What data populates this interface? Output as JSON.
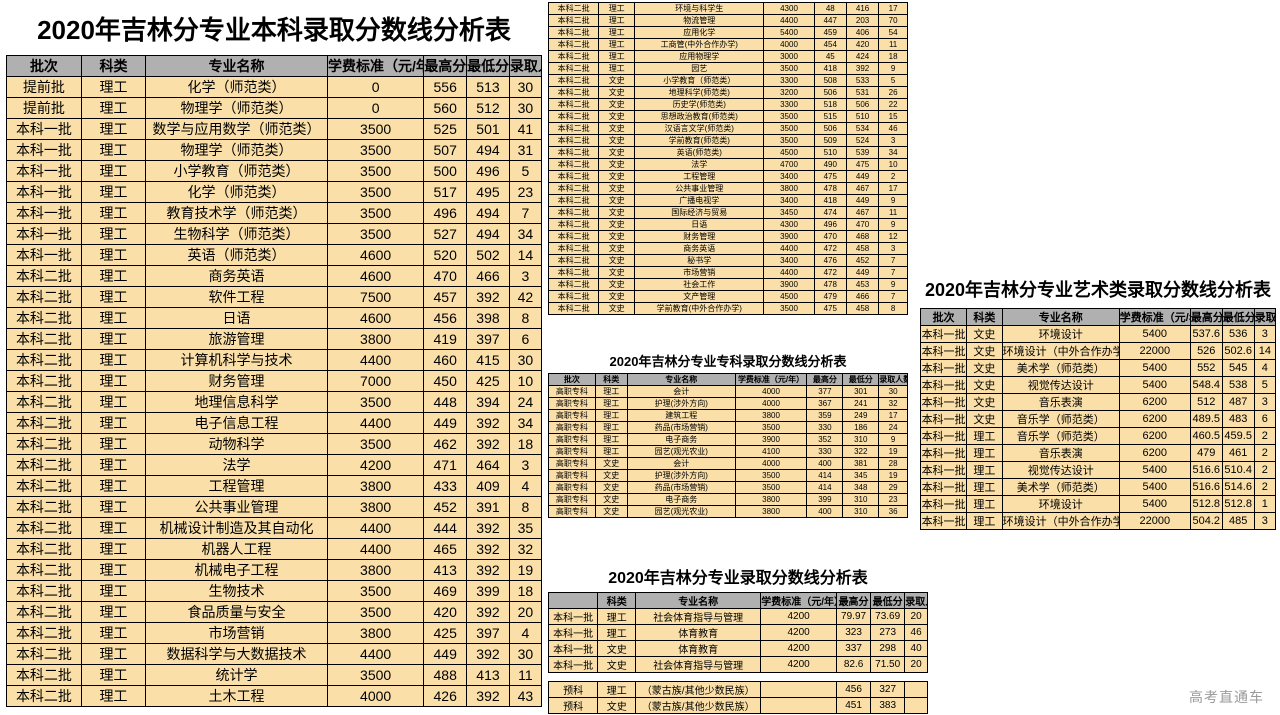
{
  "watermark": "高考直通车",
  "headers": {
    "batch": "批次",
    "category": "科类",
    "major": "专业名称",
    "fee": "学费标准（元/年）",
    "max": "最高分",
    "min": "最低分",
    "count": "录取人数"
  },
  "colors": {
    "header_bg": "#b0b0b0",
    "row_bg": "#fadfa8",
    "border": "#000000",
    "title": "#000000"
  },
  "table1": {
    "title": "2020年吉林分专业本科录取分数线分析表",
    "title_fontsize": 26,
    "cell_fontsize": 14,
    "rows": [
      [
        "提前批",
        "理工",
        "化学（师范类）",
        "0",
        "556",
        "513",
        "30"
      ],
      [
        "提前批",
        "理工",
        "物理学（师范类）",
        "0",
        "560",
        "512",
        "30"
      ],
      [
        "本科一批",
        "理工",
        "数学与应用数学（师范类）",
        "3500",
        "525",
        "501",
        "41"
      ],
      [
        "本科一批",
        "理工",
        "物理学（师范类）",
        "3500",
        "507",
        "494",
        "31"
      ],
      [
        "本科一批",
        "理工",
        "小学教育（师范类）",
        "3500",
        "500",
        "496",
        "5"
      ],
      [
        "本科一批",
        "理工",
        "化学（师范类）",
        "3500",
        "517",
        "495",
        "23"
      ],
      [
        "本科一批",
        "理工",
        "教育技术学（师范类）",
        "3500",
        "496",
        "494",
        "7"
      ],
      [
        "本科一批",
        "理工",
        "生物科学（师范类）",
        "3500",
        "527",
        "494",
        "34"
      ],
      [
        "本科一批",
        "理工",
        "英语（师范类）",
        "4600",
        "520",
        "502",
        "14"
      ],
      [
        "本科二批",
        "理工",
        "商务英语",
        "4600",
        "470",
        "466",
        "3"
      ],
      [
        "本科二批",
        "理工",
        "软件工程",
        "7500",
        "457",
        "392",
        "42"
      ],
      [
        "本科二批",
        "理工",
        "日语",
        "4600",
        "456",
        "398",
        "8"
      ],
      [
        "本科二批",
        "理工",
        "旅游管理",
        "3800",
        "419",
        "397",
        "6"
      ],
      [
        "本科二批",
        "理工",
        "计算机科学与技术",
        "4400",
        "460",
        "415",
        "30"
      ],
      [
        "本科二批",
        "理工",
        "财务管理",
        "7000",
        "450",
        "425",
        "10"
      ],
      [
        "本科二批",
        "理工",
        "地理信息科学",
        "3500",
        "448",
        "394",
        "24"
      ],
      [
        "本科二批",
        "理工",
        "电子信息工程",
        "4400",
        "449",
        "392",
        "34"
      ],
      [
        "本科二批",
        "理工",
        "动物科学",
        "3500",
        "462",
        "392",
        "18"
      ],
      [
        "本科二批",
        "理工",
        "法学",
        "4200",
        "471",
        "464",
        "3"
      ],
      [
        "本科二批",
        "理工",
        "工程管理",
        "3800",
        "433",
        "409",
        "4"
      ],
      [
        "本科二批",
        "理工",
        "公共事业管理",
        "3800",
        "452",
        "391",
        "8"
      ],
      [
        "本科二批",
        "理工",
        "机械设计制造及其自动化",
        "4400",
        "444",
        "392",
        "35"
      ],
      [
        "本科二批",
        "理工",
        "机器人工程",
        "4400",
        "465",
        "392",
        "32"
      ],
      [
        "本科二批",
        "理工",
        "机械电子工程",
        "3800",
        "413",
        "392",
        "19"
      ],
      [
        "本科二批",
        "理工",
        "生物技术",
        "3500",
        "469",
        "399",
        "18"
      ],
      [
        "本科二批",
        "理工",
        "食品质量与安全",
        "3500",
        "420",
        "392",
        "20"
      ],
      [
        "本科二批",
        "理工",
        "市场营销",
        "3800",
        "425",
        "397",
        "4"
      ],
      [
        "本科二批",
        "理工",
        "数据科学与大数据技术",
        "4400",
        "449",
        "392",
        "30"
      ],
      [
        "本科二批",
        "理工",
        "统计学",
        "3500",
        "488",
        "413",
        "11"
      ],
      [
        "本科二批",
        "理工",
        "土木工程",
        "4000",
        "426",
        "392",
        "43"
      ]
    ]
  },
  "table2": {
    "cell_fontsize": 8,
    "rows": [
      [
        "本科二批",
        "理工",
        "环境与科学生",
        "4300",
        "48",
        "416",
        "17"
      ],
      [
        "本科二批",
        "理工",
        "物流管理",
        "4400",
        "447",
        "203",
        "70"
      ],
      [
        "本科二批",
        "理工",
        "应用化学",
        "5400",
        "459",
        "406",
        "54"
      ],
      [
        "本科二批",
        "理工",
        "工商管(中外合作办学)",
        "4000",
        "454",
        "420",
        "11"
      ],
      [
        "本科二批",
        "理工",
        "应用物理学",
        "3000",
        "45",
        "424",
        "18"
      ],
      [
        "本科二批",
        "理工",
        "园艺",
        "3500",
        "418",
        "392",
        "9"
      ],
      [
        "本科二批",
        "文史",
        "小学教育（师范类）",
        "3300",
        "508",
        "533",
        "5"
      ],
      [
        "本科二批",
        "文史",
        "地理科学(师范类)",
        "3200",
        "506",
        "531",
        "26"
      ],
      [
        "本科二批",
        "文史",
        "历史学(师范类)",
        "3300",
        "518",
        "506",
        "22"
      ],
      [
        "本科二批",
        "文史",
        "思想政治教育(师范类)",
        "3500",
        "515",
        "510",
        "15"
      ],
      [
        "本科二批",
        "文史",
        "汉语言文学(师范类)",
        "3500",
        "506",
        "534",
        "46"
      ],
      [
        "本科二批",
        "文史",
        "学前教育(师范类)",
        "3500",
        "509",
        "524",
        "3"
      ],
      [
        "本科二批",
        "文史",
        "英语(师范类)",
        "4500",
        "510",
        "539",
        "34"
      ],
      [
        "本科二批",
        "文史",
        "法学",
        "4700",
        "490",
        "475",
        "10"
      ],
      [
        "本科二批",
        "文史",
        "工程管理",
        "3400",
        "475",
        "449",
        "2"
      ],
      [
        "本科二批",
        "文史",
        "公共事业管理",
        "3800",
        "478",
        "467",
        "17"
      ],
      [
        "本科二批",
        "文史",
        "广播电视学",
        "3400",
        "418",
        "449",
        "9"
      ],
      [
        "本科二批",
        "文史",
        "国际经济与贸易",
        "3450",
        "474",
        "467",
        "11"
      ],
      [
        "本科二批",
        "文史",
        "日语",
        "4300",
        "496",
        "470",
        "9"
      ],
      [
        "本科二批",
        "文史",
        "财务管理",
        "3900",
        "470",
        "468",
        "12"
      ],
      [
        "本科二批",
        "文史",
        "商务英语",
        "4400",
        "472",
        "458",
        "3"
      ],
      [
        "本科二批",
        "文史",
        "秘书学",
        "3400",
        "476",
        "452",
        "7"
      ],
      [
        "本科二批",
        "文史",
        "市场营销",
        "4400",
        "472",
        "449",
        "7"
      ],
      [
        "本科二批",
        "文史",
        "社会工作",
        "3900",
        "478",
        "453",
        "9"
      ],
      [
        "本科二批",
        "文史",
        "文产管理",
        "4500",
        "479",
        "466",
        "7"
      ],
      [
        "本科二批",
        "文史",
        "学前教育(中外合作办学)",
        "3500",
        "475",
        "458",
        "8"
      ]
    ]
  },
  "table3": {
    "title": "2020年吉林分专业专科录取分数线分析表",
    "title_fontsize": 13,
    "cell_fontsize": 8,
    "rows": [
      [
        "高职专科",
        "理工",
        "会计",
        "4000",
        "377",
        "301",
        "30"
      ],
      [
        "高职专科",
        "理工",
        "护理(涉外方向)",
        "4000",
        "367",
        "241",
        "32"
      ],
      [
        "高职专科",
        "理工",
        "建筑工程",
        "3800",
        "359",
        "249",
        "17"
      ],
      [
        "高职专科",
        "理工",
        "药品(市场营销)",
        "3500",
        "330",
        "186",
        "24"
      ],
      [
        "高职专科",
        "理工",
        "电子商务",
        "3900",
        "352",
        "310",
        "9"
      ],
      [
        "高职专科",
        "理工",
        "园艺(观光农业)",
        "4100",
        "330",
        "322",
        "19"
      ],
      [
        "高职专科",
        "文史",
        "会计",
        "4000",
        "400",
        "381",
        "28"
      ],
      [
        "高职专科",
        "文史",
        "护理(涉外方向)",
        "3500",
        "414",
        "345",
        "19"
      ],
      [
        "高职专科",
        "文史",
        "药品(市场营销)",
        "3500",
        "414",
        "348",
        "29"
      ],
      [
        "高职专科",
        "文史",
        "电子商务",
        "3800",
        "399",
        "310",
        "23"
      ],
      [
        "高职专科",
        "文史",
        "园艺(观光农业)",
        "3800",
        "400",
        "310",
        "36"
      ]
    ]
  },
  "table4": {
    "title": "2020年吉林分专业录取分数线分析表",
    "title_fontsize": 16,
    "cell_fontsize": 10,
    "rows": [
      [
        "本科一批",
        "理工",
        "社会体育指导与管理",
        "4200",
        "79.97",
        "73.69",
        "20"
      ],
      [
        "本科一批",
        "理工",
        "体育教育",
        "4200",
        "323",
        "273",
        "46"
      ],
      [
        "本科一批",
        "文史",
        "体育教育",
        "4200",
        "337",
        "298",
        "40"
      ],
      [
        "本科一批",
        "文史",
        "社会体育指导与管理",
        "4200",
        "82.6",
        "71.50",
        "20"
      ]
    ],
    "rows2": [
      [
        "预科",
        "理工",
        "（蒙古族/其他少数民族）",
        "",
        "456",
        "327",
        ""
      ],
      [
        "预科",
        "文史",
        "（蒙古族/其他少数民族）",
        "",
        "451",
        "383",
        ""
      ]
    ]
  },
  "table5": {
    "title": "2020年吉林分专业艺术类录取分数线分析表",
    "title_fontsize": 18,
    "cell_fontsize": 11,
    "rows": [
      [
        "本科一批",
        "文史",
        "环境设计",
        "5400",
        "537.6",
        "536",
        "3"
      ],
      [
        "本科一批",
        "文史",
        "环境设计（中外合作办学）",
        "22000",
        "526",
        "502.6",
        "14"
      ],
      [
        "本科一批",
        "文史",
        "美术学（师范类）",
        "5400",
        "552",
        "545",
        "4"
      ],
      [
        "本科一批",
        "文史",
        "视觉传达设计",
        "5400",
        "548.4",
        "538",
        "5"
      ],
      [
        "本科一批",
        "文史",
        "音乐表演",
        "6200",
        "512",
        "487",
        "3"
      ],
      [
        "本科一批",
        "文史",
        "音乐学（师范类）",
        "6200",
        "489.5",
        "483",
        "6"
      ],
      [
        "本科一批",
        "理工",
        "音乐学（师范类）",
        "6200",
        "460.5",
        "459.5",
        "2"
      ],
      [
        "本科一批",
        "理工",
        "音乐表演",
        "6200",
        "479",
        "461",
        "2"
      ],
      [
        "本科一批",
        "理工",
        "视觉传达设计",
        "5400",
        "516.6",
        "510.4",
        "2"
      ],
      [
        "本科一批",
        "理工",
        "美术学（师范类）",
        "5400",
        "516.6",
        "514.6",
        "2"
      ],
      [
        "本科一批",
        "理工",
        "环境设计",
        "5400",
        "512.8",
        "512.8",
        "1"
      ],
      [
        "本科一批",
        "理工",
        "环境设计（中外合作办学）",
        "22000",
        "504.2",
        "485",
        "3"
      ]
    ]
  }
}
